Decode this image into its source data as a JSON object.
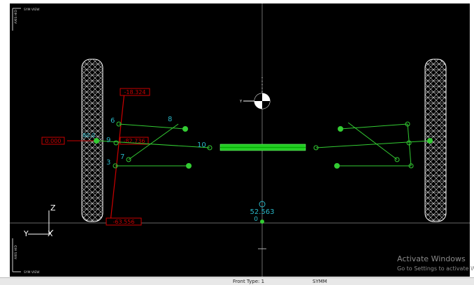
{
  "viewport": {
    "top_corner": {
      "axis": "AXIS HID",
      "view": "SYM VIEW"
    },
    "bottom_corner": {
      "axis": "AXIS HID",
      "view": "SYM VIEW"
    },
    "red_labels": [
      "-18.324",
      "0.000",
      "-82.736",
      "-63.556"
    ],
    "small_label": "80.0",
    "points": [
      "6",
      "8",
      "9",
      "7",
      "3",
      "10"
    ],
    "center_value": "52.563",
    "zero": "0",
    "triad": {
      "z": "Z",
      "y": "Y",
      "x": "X"
    },
    "marker_axis": "Y"
  },
  "watermark": {
    "title": "Activate Windows",
    "subtitle": "Go to Settings to activate W"
  },
  "status_bar": {
    "front_type": "Front Type: 1",
    "mode": "SYMM"
  }
}
